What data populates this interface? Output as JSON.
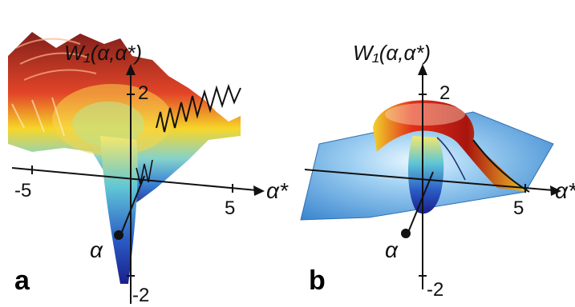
{
  "panels": [
    {
      "letter": "a",
      "z_label": "W₁(α,α*)",
      "z_ticks": [
        "2",
        "-2"
      ],
      "x_ticks": [
        "-5",
        "5"
      ],
      "x_axis_label": "α*",
      "y_axis_label": "α"
    },
    {
      "letter": "b",
      "z_label": "W₁(α,α*)",
      "z_ticks": [
        "2",
        "-2"
      ],
      "x_ticks": [
        "5"
      ],
      "x_axis_label": "α*",
      "y_axis_label": "α"
    }
  ],
  "colors": {
    "surface_high": "#8b1a12",
    "surface_mid": "#f2d21a",
    "surface_low": "#2f6fd0",
    "surface_min": "#1a1f8a",
    "plane": "#4a90d6"
  }
}
